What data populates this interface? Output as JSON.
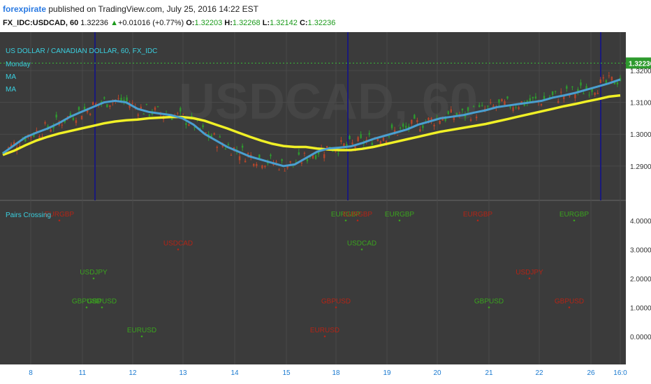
{
  "header": {
    "user": "forexpirate",
    "published": "published on TradingView.com, July 25, 2016 14:22 EST",
    "symbol": "FX_IDC:USDCAD, 60",
    "last": "1.32236",
    "change": "+0.01016 (+0.77%)",
    "open_label": "O:",
    "open": "1.32203",
    "high_label": "H:",
    "high": "1.32268",
    "low_label": "L:",
    "low": "1.32142",
    "close_label": "C:",
    "close": "1.32236"
  },
  "colors": {
    "background": "#3b3b3b",
    "grid": "#4a4a4a",
    "up_candle": "#2e9a2e",
    "down_candle": "#b5452a",
    "ma_fast": "#4a9fd0",
    "ma_slow": "#f0f026",
    "separator": "#1a1a7a",
    "legend_text": "#3ad0e0",
    "label_green": "#3aa31e",
    "label_red": "#b32416",
    "price_tag": "#2e9a2e"
  },
  "chart_data": [
    {
      "type": "line",
      "title": "US DOLLAR / CANADIAN DOLLAR, 60, FX_IDC",
      "legend": [
        "Monday",
        "MA",
        "MA"
      ],
      "y_ticks": [
        "1.32236",
        "1.32000",
        "1.31000",
        "1.30000",
        "1.29000"
      ],
      "ylim": [
        1.2825,
        1.3255
      ],
      "last_price": 1.32236,
      "series": [
        {
          "values": [
            1.294,
            1.2965,
            1.299,
            1.3005,
            1.3018,
            1.3035,
            1.3055,
            1.307,
            1.3085,
            1.31,
            1.3105,
            1.31,
            1.308,
            1.307,
            1.3065,
            1.306,
            1.305,
            1.303,
            1.3,
            1.298,
            1.296,
            1.2945,
            1.293,
            1.292,
            1.291,
            1.29,
            1.2905,
            1.2925,
            1.2945,
            1.2955,
            1.2958,
            1.2962,
            1.2972,
            1.2985,
            1.2995,
            1.3005,
            1.3015,
            1.303,
            1.304,
            1.305,
            1.3055,
            1.306,
            1.3068,
            1.3075,
            1.3085,
            1.309,
            1.3095,
            1.31,
            1.3105,
            1.3115,
            1.3122,
            1.313,
            1.314,
            1.315,
            1.316,
            1.3172
          ]
        },
        {
          "values": [
            1.2935,
            1.2948,
            1.2965,
            1.298,
            1.2992,
            1.3002,
            1.301,
            1.3018,
            1.3026,
            1.3034,
            1.304,
            1.3044,
            1.3046,
            1.305,
            1.3052,
            1.3054,
            1.3054,
            1.305,
            1.3042,
            1.303,
            1.3018,
            1.3005,
            1.2992,
            1.298,
            1.297,
            1.2963,
            1.296,
            1.296,
            1.2955,
            1.2952,
            1.295,
            1.295,
            1.2954,
            1.296,
            1.2968,
            1.2976,
            1.2984,
            1.2992,
            1.3,
            1.3008,
            1.3014,
            1.302,
            1.3026,
            1.3032,
            1.304,
            1.3048,
            1.3056,
            1.3064,
            1.3072,
            1.308,
            1.3088,
            1.3095,
            1.3103,
            1.311,
            1.3118,
            1.3122
          ]
        }
      ],
      "day_separators": [
        "11",
        "18",
        "25"
      ]
    },
    {
      "type": "scatter",
      "title": "Pairs Crossing",
      "y_ticks": [
        "4.0000",
        "3.0000",
        "2.0000",
        "1.0000",
        "0.0000"
      ],
      "ylim": [
        -0.8,
        4.5
      ],
      "x_ticks": [
        "8",
        "11",
        "12",
        "13",
        "14",
        "15",
        "18",
        "19",
        "20",
        "21",
        "22",
        "26",
        "16:0"
      ],
      "points": [
        {
          "label": "EURGBP",
          "x": "8 (after close)",
          "y": 4,
          "dir": "down"
        },
        {
          "label": "USDCAD",
          "x": "12 (before open)",
          "y": 3,
          "dir": "down"
        },
        {
          "label": "USDJPY",
          "x": "11",
          "y": 2,
          "dir": "up"
        },
        {
          "label": "GBPUSD",
          "x": "11",
          "y": 1,
          "dir": "up"
        },
        {
          "label": "GBPUSD",
          "x": "11 (after)",
          "y": 1,
          "dir": "up"
        },
        {
          "label": "EURUSD",
          "x": "12",
          "y": 0,
          "dir": "up"
        },
        {
          "label": "EURGBP",
          "x": "18",
          "y": 4,
          "dir": "up"
        },
        {
          "label": "EURGBP",
          "x": "18 (after)",
          "y": 4,
          "dir": "down"
        },
        {
          "label": "USDCAD",
          "x": "18",
          "y": 3,
          "dir": "up"
        },
        {
          "label": "GBPUSD",
          "x": "15",
          "y": 1,
          "dir": "down"
        },
        {
          "label": "EURUSD",
          "x": "15",
          "y": 0,
          "dir": "down"
        },
        {
          "label": "EURGBP",
          "x": "19",
          "y": 4,
          "dir": "up"
        },
        {
          "label": "EURGBP",
          "x": "20 (after)",
          "y": 4,
          "dir": "down"
        },
        {
          "label": "GBPUSD",
          "x": "21",
          "y": 1,
          "dir": "up"
        },
        {
          "label": "USDJPY",
          "x": "22",
          "y": 2,
          "dir": "down"
        },
        {
          "label": "EURGBP",
          "x": "22 (after)",
          "y": 4,
          "dir": "up"
        },
        {
          "label": "GBPUSD",
          "x": "26 (before)",
          "y": 1,
          "dir": "down"
        }
      ]
    }
  ],
  "watermark": "USDCAD, 60"
}
